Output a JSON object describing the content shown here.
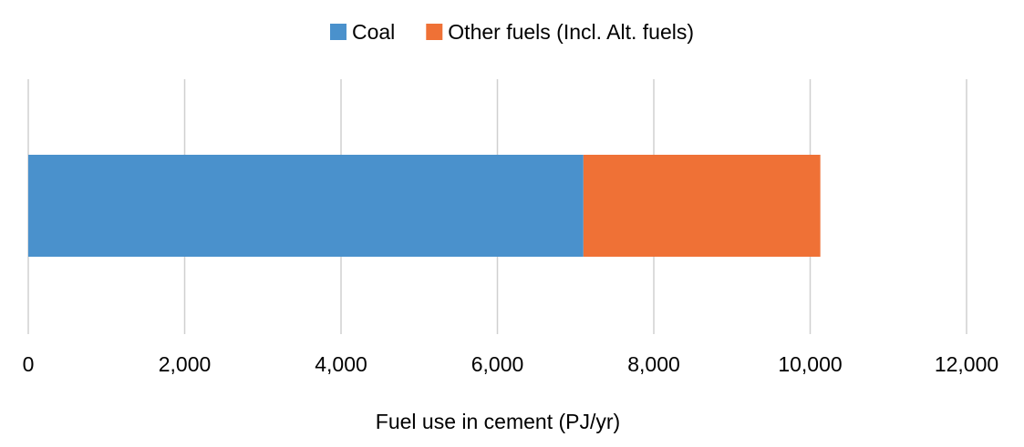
{
  "chart_data": {
    "type": "bar",
    "orientation": "horizontal",
    "stacked": true,
    "categories": [
      ""
    ],
    "series": [
      {
        "name": "Coal",
        "values": [
          7100
        ],
        "color": "#4a91cc"
      },
      {
        "name": "Other fuels (Incl. Alt. fuels)",
        "values": [
          3030
        ],
        "color": "#ef7136"
      }
    ],
    "xlabel": "Fuel use in cement (PJ/yr)",
    "ylabel": "",
    "xlim": [
      0,
      12000
    ],
    "xticks": [
      "0",
      "2,000",
      "4,000",
      "6,000",
      "8,000",
      "10,000",
      "12,000"
    ],
    "grid": "vertical",
    "legend_position": "top-center",
    "gridline_color": "#d0d0d0"
  }
}
